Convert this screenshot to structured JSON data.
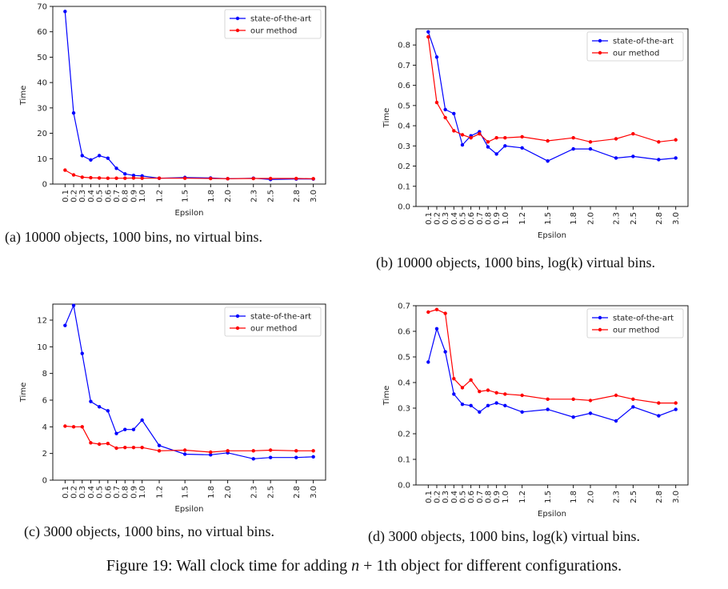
{
  "figure_caption": {
    "prefix": "Figure 19: Wall clock time for adding ",
    "math_n": "n",
    "suffix": " + 1th object for different configurations."
  },
  "colors": {
    "state_of_the_art": "#0000ff",
    "our_method": "#ff0000"
  },
  "chart_data": [
    {
      "id": "a",
      "type": "line",
      "caption": "(a) 10000 objects, 1000 bins, no virtual bins.",
      "xlabel": "Epsilon",
      "ylabel": "Time",
      "x": [
        0.1,
        0.2,
        0.3,
        0.4,
        0.5,
        0.6,
        0.7,
        0.8,
        0.9,
        1.0,
        1.2,
        1.5,
        1.8,
        2.0,
        2.3,
        2.5,
        2.8,
        3.0
      ],
      "x_tick_labels": [
        "0.1",
        "0.2",
        "0.3",
        "0.4",
        "0.5",
        "0.6",
        "0.7",
        "0.8",
        "0.9",
        "1.0",
        "1.2",
        "1.5",
        "1.8",
        "2.0",
        "2.3",
        "2.5",
        "2.8",
        "3.0"
      ],
      "ylim": [
        0,
        70
      ],
      "y_ticks": [
        0,
        10,
        20,
        30,
        40,
        50,
        60,
        70
      ],
      "y_tick_labels": [
        "0",
        "10",
        "20",
        "30",
        "40",
        "50",
        "60",
        "70"
      ],
      "legend": "top-right",
      "grid": false,
      "series": [
        {
          "name": "state-of-the-art",
          "values": [
            68,
            28,
            11.2,
            9.5,
            11.2,
            10.2,
            6.2,
            4.0,
            3.4,
            3.2,
            2.3,
            2.6,
            2.4,
            2.1,
            2.3,
            1.8,
            2.0,
            2.0
          ]
        },
        {
          "name": "our method",
          "values": [
            5.5,
            3.6,
            2.7,
            2.5,
            2.4,
            2.3,
            2.3,
            2.3,
            2.4,
            2.3,
            2.3,
            2.3,
            2.2,
            2.1,
            2.2,
            2.2,
            2.2,
            2.1
          ]
        }
      ]
    },
    {
      "id": "b",
      "type": "line",
      "caption": "(b) 10000 objects, 1000 bins, log(k) virtual bins.",
      "xlabel": "Epsilon",
      "ylabel": "Time",
      "x": [
        0.1,
        0.2,
        0.3,
        0.4,
        0.5,
        0.6,
        0.7,
        0.8,
        0.9,
        1.0,
        1.2,
        1.5,
        1.8,
        2.0,
        2.3,
        2.5,
        2.8,
        3.0
      ],
      "x_tick_labels": [
        "0.1",
        "0.2",
        "0.3",
        "0.4",
        "0.5",
        "0.6",
        "0.7",
        "0.8",
        "0.9",
        "1.0",
        "1.2",
        "1.5",
        "1.8",
        "2.0",
        "2.3",
        "2.5",
        "2.8",
        "3.0"
      ],
      "ylim": [
        0,
        0.88
      ],
      "y_ticks": [
        0,
        0.1,
        0.2,
        0.3,
        0.4,
        0.5,
        0.6,
        0.7,
        0.8
      ],
      "y_tick_labels": [
        "0.0",
        "0.1",
        "0.2",
        "0.3",
        "0.4",
        "0.5",
        "0.6",
        "0.7",
        "0.8"
      ],
      "legend": "top-right",
      "grid": false,
      "series": [
        {
          "name": "state-of-the-art",
          "values": [
            0.865,
            0.74,
            0.48,
            0.46,
            0.305,
            0.35,
            0.37,
            0.295,
            0.26,
            0.3,
            0.29,
            0.225,
            0.285,
            0.285,
            0.24,
            0.248,
            0.232,
            0.24
          ]
        },
        {
          "name": "our method",
          "values": [
            0.84,
            0.515,
            0.44,
            0.375,
            0.355,
            0.34,
            0.36,
            0.32,
            0.34,
            0.34,
            0.345,
            0.325,
            0.34,
            0.32,
            0.335,
            0.36,
            0.32,
            0.33
          ]
        }
      ]
    },
    {
      "id": "c",
      "type": "line",
      "caption": "(c) 3000 objects, 1000 bins, no virtual bins.",
      "xlabel": "Epsilon",
      "ylabel": "Time",
      "x": [
        0.1,
        0.2,
        0.3,
        0.4,
        0.5,
        0.6,
        0.7,
        0.8,
        0.9,
        1.0,
        1.2,
        1.5,
        1.8,
        2.0,
        2.3,
        2.5,
        2.8,
        3.0
      ],
      "x_tick_labels": [
        "0.1",
        "0.2",
        "0.3",
        "0.4",
        "0.5",
        "0.6",
        "0.7",
        "0.8",
        "0.9",
        "1.0",
        "1.2",
        "1.5",
        "1.8",
        "2.0",
        "2.3",
        "2.5",
        "2.8",
        "3.0"
      ],
      "ylim": [
        0,
        13.2
      ],
      "y_ticks": [
        0,
        2,
        4,
        6,
        8,
        10,
        12
      ],
      "y_tick_labels": [
        "0",
        "2",
        "4",
        "6",
        "8",
        "10",
        "12"
      ],
      "legend": "top-right",
      "grid": false,
      "series": [
        {
          "name": "state-of-the-art",
          "values": [
            11.6,
            13.1,
            9.5,
            5.9,
            5.5,
            5.2,
            3.5,
            3.8,
            3.8,
            4.5,
            2.6,
            1.95,
            1.9,
            2.05,
            1.6,
            1.7,
            1.7,
            1.75
          ]
        },
        {
          "name": "our method",
          "values": [
            4.05,
            4.0,
            4.0,
            2.8,
            2.7,
            2.75,
            2.4,
            2.45,
            2.45,
            2.45,
            2.2,
            2.25,
            2.1,
            2.2,
            2.2,
            2.25,
            2.2,
            2.2
          ]
        }
      ]
    },
    {
      "id": "d",
      "type": "line",
      "caption": "(d) 3000 objects, 1000 bins, log(k) virtual bins.",
      "xlabel": "Epsilon",
      "ylabel": "Time",
      "x": [
        0.1,
        0.2,
        0.3,
        0.4,
        0.5,
        0.6,
        0.7,
        0.8,
        0.9,
        1.0,
        1.2,
        1.5,
        1.8,
        2.0,
        2.3,
        2.5,
        2.8,
        3.0
      ],
      "x_tick_labels": [
        "0.1",
        "0.2",
        "0.3",
        "0.4",
        "0.5",
        "0.6",
        "0.7",
        "0.8",
        "0.9",
        "1.0",
        "1.2",
        "1.5",
        "1.8",
        "2.0",
        "2.3",
        "2.5",
        "2.8",
        "3.0"
      ],
      "ylim": [
        0,
        0.7
      ],
      "y_ticks": [
        0,
        0.1,
        0.2,
        0.3,
        0.4,
        0.5,
        0.6,
        0.7
      ],
      "y_tick_labels": [
        "0.0",
        "0.1",
        "0.2",
        "0.3",
        "0.4",
        "0.5",
        "0.6",
        "0.7"
      ],
      "legend": "top-right",
      "grid": false,
      "series": [
        {
          "name": "state-of-the-art",
          "values": [
            0.48,
            0.61,
            0.52,
            0.355,
            0.315,
            0.31,
            0.285,
            0.31,
            0.32,
            0.31,
            0.285,
            0.295,
            0.265,
            0.28,
            0.25,
            0.305,
            0.27,
            0.295
          ]
        },
        {
          "name": "our method",
          "values": [
            0.675,
            0.685,
            0.67,
            0.415,
            0.38,
            0.41,
            0.365,
            0.37,
            0.36,
            0.355,
            0.35,
            0.335,
            0.335,
            0.33,
            0.35,
            0.335,
            0.32,
            0.32
          ]
        }
      ]
    }
  ]
}
